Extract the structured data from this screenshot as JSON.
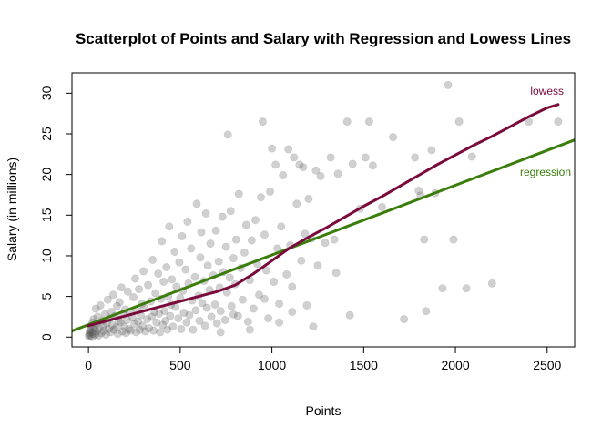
{
  "chart_data": {
    "type": "scatter",
    "title": "Scatterplot of Points and Salary with Regression and Lowess Lines",
    "xlabel": "Points",
    "ylabel": "Salary (in millions)",
    "xlim": [
      -90,
      2650
    ],
    "ylim": [
      -1.2,
      32.5
    ],
    "xticks": [
      0,
      500,
      1000,
      1500,
      2000,
      2500
    ],
    "yticks": [
      0,
      5,
      10,
      15,
      20,
      25,
      30
    ],
    "grid": false,
    "legend": "none",
    "colors": {
      "points": "#555555",
      "regression": "#3a7d0a",
      "lowess": "#7a0a3c"
    },
    "points": [
      [
        2,
        0.1
      ],
      [
        4,
        0.3
      ],
      [
        6,
        0.5
      ],
      [
        8,
        0.8
      ],
      [
        10,
        1.0
      ],
      [
        12,
        0.2
      ],
      [
        15,
        1.4
      ],
      [
        18,
        0.6
      ],
      [
        20,
        0.0
      ],
      [
        22,
        1.8
      ],
      [
        25,
        0.4
      ],
      [
        28,
        2.2
      ],
      [
        30,
        0.9
      ],
      [
        35,
        1.2
      ],
      [
        38,
        0.3
      ],
      [
        40,
        3.5
      ],
      [
        42,
        1.6
      ],
      [
        45,
        0.7
      ],
      [
        50,
        2.5
      ],
      [
        55,
        0.2
      ],
      [
        60,
        1.1
      ],
      [
        65,
        3.9
      ],
      [
        70,
        0.5
      ],
      [
        75,
        2.0
      ],
      [
        80,
        1.4
      ],
      [
        85,
        0.8
      ],
      [
        90,
        2.8
      ],
      [
        95,
        0.3
      ],
      [
        100,
        1.7
      ],
      [
        105,
        4.6
      ],
      [
        110,
        1.0
      ],
      [
        115,
        2.3
      ],
      [
        120,
        0.6
      ],
      [
        125,
        3.1
      ],
      [
        130,
        1.5
      ],
      [
        135,
        5.2
      ],
      [
        140,
        0.9
      ],
      [
        145,
        2.6
      ],
      [
        150,
        1.2
      ],
      [
        155,
        3.8
      ],
      [
        160,
        0.4
      ],
      [
        165,
        2.0
      ],
      [
        170,
        4.3
      ],
      [
        175,
        1.8
      ],
      [
        180,
        6.1
      ],
      [
        185,
        0.7
      ],
      [
        190,
        2.9
      ],
      [
        195,
        1.3
      ],
      [
        200,
        3.4
      ],
      [
        205,
        0.5
      ],
      [
        210,
        2.1
      ],
      [
        215,
        5.6
      ],
      [
        220,
        1.0
      ],
      [
        225,
        3.0
      ],
      [
        230,
        0.8
      ],
      [
        240,
        2.4
      ],
      [
        245,
        4.9
      ],
      [
        250,
        1.6
      ],
      [
        255,
        7.2
      ],
      [
        260,
        0.6
      ],
      [
        265,
        3.3
      ],
      [
        270,
        1.9
      ],
      [
        275,
        5.9
      ],
      [
        280,
        0.9
      ],
      [
        285,
        2.7
      ],
      [
        290,
        4.1
      ],
      [
        295,
        1.4
      ],
      [
        300,
        8.1
      ],
      [
        305,
        3.6
      ],
      [
        310,
        0.7
      ],
      [
        320,
        2.2
      ],
      [
        325,
        6.4
      ],
      [
        330,
        1.1
      ],
      [
        340,
        4.4
      ],
      [
        345,
        2.5
      ],
      [
        350,
        9.5
      ],
      [
        355,
        0.8
      ],
      [
        360,
        3.1
      ],
      [
        365,
        5.4
      ],
      [
        370,
        1.8
      ],
      [
        380,
        7.8
      ],
      [
        385,
        2.9
      ],
      [
        390,
        0.6
      ],
      [
        395,
        4.7
      ],
      [
        400,
        11.8
      ],
      [
        405,
        1.5
      ],
      [
        410,
        6.8
      ],
      [
        415,
        3.2
      ],
      [
        420,
        2.0
      ],
      [
        425,
        8.6
      ],
      [
        430,
        0.9
      ],
      [
        435,
        5.0
      ],
      [
        440,
        13.6
      ],
      [
        445,
        2.6
      ],
      [
        450,
        4.0
      ],
      [
        455,
        7.1
      ],
      [
        460,
        1.3
      ],
      [
        470,
        10.5
      ],
      [
        475,
        3.7
      ],
      [
        480,
        6.2
      ],
      [
        490,
        2.3
      ],
      [
        495,
        9.2
      ],
      [
        500,
        4.8
      ],
      [
        505,
        1.0
      ],
      [
        510,
        12.4
      ],
      [
        515,
        5.7
      ],
      [
        520,
        3.0
      ],
      [
        530,
        8.3
      ],
      [
        535,
        1.8
      ],
      [
        540,
        14.2
      ],
      [
        545,
        6.6
      ],
      [
        550,
        2.7
      ],
      [
        560,
        10.9
      ],
      [
        565,
        4.5
      ],
      [
        570,
        0.9
      ],
      [
        580,
        7.4
      ],
      [
        585,
        3.3
      ],
      [
        590,
        16.4
      ],
      [
        600,
        5.1
      ],
      [
        605,
        2.0
      ],
      [
        610,
        9.8
      ],
      [
        615,
        12.9
      ],
      [
        620,
        4.2
      ],
      [
        630,
        6.9
      ],
      [
        635,
        1.4
      ],
      [
        640,
        15.2
      ],
      [
        645,
        3.6
      ],
      [
        650,
        8.8
      ],
      [
        660,
        5.8
      ],
      [
        665,
        11.5
      ],
      [
        670,
        2.5
      ],
      [
        680,
        7.6
      ],
      [
        690,
        4.0
      ],
      [
        695,
        13.1
      ],
      [
        700,
        1.7
      ],
      [
        710,
        9.3
      ],
      [
        715,
        6.1
      ],
      [
        720,
        3.2
      ],
      [
        730,
        14.8
      ],
      [
        735,
        8.0
      ],
      [
        745,
        2.1
      ],
      [
        750,
        11.1
      ],
      [
        755,
        5.5
      ],
      [
        760,
        24.9
      ],
      [
        770,
        7.3
      ],
      [
        775,
        15.5
      ],
      [
        780,
        3.8
      ],
      [
        790,
        9.7
      ],
      [
        800,
        6.5
      ],
      [
        805,
        12.0
      ],
      [
        815,
        2.6
      ],
      [
        820,
        17.6
      ],
      [
        830,
        8.5
      ],
      [
        840,
        4.6
      ],
      [
        850,
        10.4
      ],
      [
        860,
        13.8
      ],
      [
        870,
        1.9
      ],
      [
        880,
        7.0
      ],
      [
        890,
        11.9
      ],
      [
        900,
        3.5
      ],
      [
        910,
        14.4
      ],
      [
        920,
        9.0
      ],
      [
        930,
        5.2
      ],
      [
        940,
        17.2
      ],
      [
        950,
        26.5
      ],
      [
        960,
        12.6
      ],
      [
        970,
        8.2
      ],
      [
        980,
        2.3
      ],
      [
        990,
        17.9
      ],
      [
        1000,
        23.2
      ],
      [
        1010,
        6.8
      ],
      [
        1020,
        21.2
      ],
      [
        1030,
        10.9
      ],
      [
        1040,
        4.1
      ],
      [
        1050,
        13.6
      ],
      [
        1060,
        19.9
      ],
      [
        1080,
        7.7
      ],
      [
        1090,
        23.1
      ],
      [
        1100,
        11.3
      ],
      [
        1110,
        3.1
      ],
      [
        1120,
        22.1
      ],
      [
        1135,
        16.4
      ],
      [
        1150,
        21.2
      ],
      [
        1160,
        9.4
      ],
      [
        1170,
        20.9
      ],
      [
        1180,
        12.7
      ],
      [
        1190,
        3.9
      ],
      [
        1200,
        17.0
      ],
      [
        1215,
        12.1
      ],
      [
        1225,
        1.3
      ],
      [
        1240,
        20.5
      ],
      [
        1250,
        8.8
      ],
      [
        1265,
        19.8
      ],
      [
        1290,
        11.6
      ],
      [
        1320,
        22.1
      ],
      [
        1340,
        12.0
      ],
      [
        1360,
        20.1
      ],
      [
        1410,
        26.5
      ],
      [
        1425,
        2.7
      ],
      [
        1440,
        21.3
      ],
      [
        1480,
        15.8
      ],
      [
        1510,
        22.1
      ],
      [
        1530,
        26.5
      ],
      [
        1550,
        21.1
      ],
      [
        1600,
        16.0
      ],
      [
        1660,
        24.6
      ],
      [
        1720,
        2.2
      ],
      [
        1780,
        22.1
      ],
      [
        1800,
        18.0
      ],
      [
        1810,
        17.4
      ],
      [
        1830,
        12.0
      ],
      [
        1840,
        3.2
      ],
      [
        1870,
        23.0
      ],
      [
        1890,
        17.7
      ],
      [
        1930,
        6.0
      ],
      [
        1960,
        31.0
      ],
      [
        1990,
        12.0
      ],
      [
        2020,
        26.5
      ],
      [
        2060,
        6.0
      ],
      [
        2090,
        22.2
      ],
      [
        2200,
        6.6
      ],
      [
        2400,
        26.5
      ],
      [
        2560,
        26.5
      ],
      [
        1350,
        7.9
      ],
      [
        1110,
        6.2
      ],
      [
        1040,
        1.8
      ],
      [
        960,
        4.7
      ],
      [
        880,
        0.9
      ],
      [
        790,
        2.8
      ],
      [
        720,
        0.6
      ]
    ],
    "regression": {
      "name": "regression",
      "x": [
        -90,
        2650
      ],
      "y": [
        0.75,
        24.25
      ]
    },
    "lowess": {
      "name": "lowess",
      "x": [
        0,
        100,
        200,
        300,
        400,
        500,
        600,
        700,
        800,
        900,
        1000,
        1100,
        1200,
        1300,
        1400,
        1500,
        1600,
        1700,
        1800,
        1900,
        2000,
        2100,
        2200,
        2300,
        2400,
        2500,
        2560
      ],
      "y": [
        1.4,
        2.0,
        2.6,
        3.2,
        3.8,
        4.4,
        5.0,
        5.6,
        6.4,
        7.8,
        9.4,
        11.0,
        12.3,
        13.5,
        14.8,
        16.1,
        17.3,
        18.6,
        19.9,
        21.2,
        22.4,
        23.6,
        24.7,
        25.9,
        27.1,
        28.2,
        28.6
      ]
    }
  }
}
